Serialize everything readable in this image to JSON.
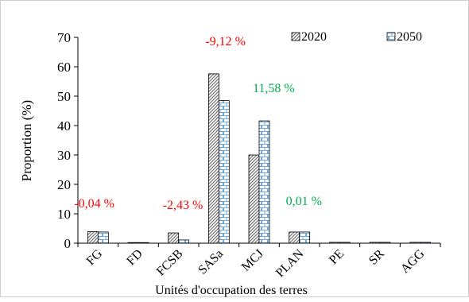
{
  "chart_data": {
    "type": "bar",
    "xlabel": "Unités d'occupation des terres",
    "ylabel": "Proportion (%)",
    "ylim": [
      0,
      70
    ],
    "yticks": [
      0,
      10,
      20,
      30,
      40,
      50,
      60,
      70
    ],
    "grid": false,
    "legend_position": "top-right",
    "categories": [
      "FG",
      "FD",
      "FCSB",
      "SASa",
      "MCJ",
      "PLAN",
      "PE",
      "SR",
      "AGG"
    ],
    "series": [
      {
        "name": "2020",
        "pattern": "diagonal-hatch",
        "values": [
          3.9,
          0.2,
          3.5,
          57.6,
          30.0,
          3.8,
          0.3,
          0.3,
          0.3
        ]
      },
      {
        "name": "2050",
        "pattern": "brick",
        "values": [
          3.8,
          0.2,
          1.1,
          48.5,
          41.6,
          3.8,
          0.3,
          0.3,
          0.3
        ]
      }
    ],
    "annotations": [
      {
        "text": "-0,04 %",
        "color": "#ff0000",
        "category": "FG"
      },
      {
        "text": "-2,43 %",
        "color": "#ff0000",
        "category": "FCSB"
      },
      {
        "text": "-9,12 %",
        "color": "#ff0000",
        "category": "SASa"
      },
      {
        "text": "11,58 %",
        "color": "#00b050",
        "category": "MCJ"
      },
      {
        "text": "0,01 %",
        "color": "#00b050",
        "category": "PLAN"
      }
    ]
  }
}
